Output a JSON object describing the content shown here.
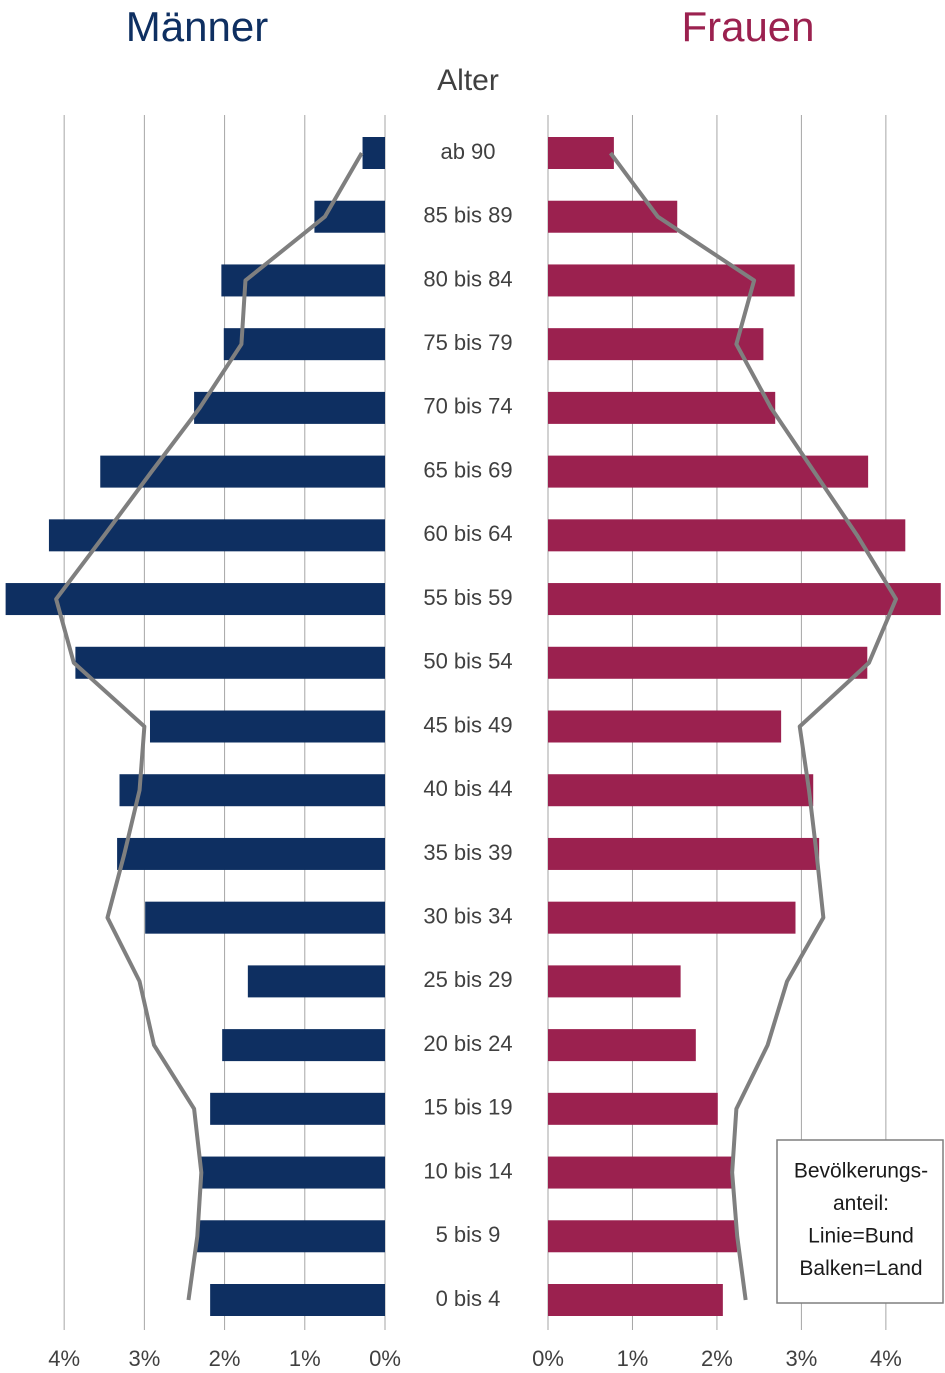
{
  "chart_data": {
    "type": "pyramid",
    "center_label": "Alter",
    "categories": [
      "ab 90",
      "85 bis 89",
      "80 bis 84",
      "75 bis 79",
      "70 bis 74",
      "65 bis 69",
      "60 bis 64",
      "55 bis 59",
      "50 bis 54",
      "45 bis 49",
      "40 bis 44",
      "35 bis 39",
      "30 bis 34",
      "25 bis 29",
      "20 bis 24",
      "15 bis 19",
      "10 bis 14",
      "5 bis 9",
      "0 bis 4"
    ],
    "line_color": "#7f7f7f",
    "grid": true,
    "panels": [
      {
        "title": "Männer",
        "side": "left",
        "color": "#0e2f61",
        "bars": [
          0.28,
          0.88,
          2.04,
          2.01,
          2.38,
          3.55,
          4.19,
          4.73,
          3.86,
          2.93,
          3.31,
          3.34,
          2.99,
          1.71,
          2.03,
          2.18,
          2.3,
          2.35,
          2.18
        ],
        "line": [
          0.29,
          0.75,
          1.74,
          1.79,
          2.31,
          2.91,
          3.5,
          4.1,
          3.88,
          3.0,
          3.06,
          3.25,
          3.46,
          3.06,
          2.88,
          2.38,
          2.29,
          2.34,
          2.45
        ],
        "xlim": [
          0,
          4.8
        ],
        "xticks": [
          {
            "value": 0,
            "label": "0%"
          },
          {
            "value": 1,
            "label": "1%"
          },
          {
            "value": 2,
            "label": "2%"
          },
          {
            "value": 3,
            "label": "3%"
          },
          {
            "value": 4,
            "label": "4%"
          }
        ]
      },
      {
        "title": "Frauen",
        "side": "right",
        "color": "#9b214f",
        "bars": [
          0.78,
          1.53,
          2.92,
          2.55,
          2.69,
          3.79,
          4.23,
          4.65,
          3.78,
          2.76,
          3.14,
          3.21,
          2.93,
          1.57,
          1.75,
          2.01,
          2.18,
          2.24,
          2.07
        ],
        "line": [
          0.74,
          1.3,
          2.44,
          2.23,
          2.64,
          3.15,
          3.66,
          4.12,
          3.8,
          2.98,
          3.09,
          3.18,
          3.26,
          2.83,
          2.6,
          2.23,
          2.18,
          2.24,
          2.34
        ],
        "xlim": [
          0,
          4.7
        ],
        "xticks": [
          {
            "value": 0,
            "label": "0%"
          },
          {
            "value": 1,
            "label": "1%"
          },
          {
            "value": 2,
            "label": "2%"
          },
          {
            "value": 3,
            "label": "3%"
          },
          {
            "value": 4,
            "label": "4%"
          }
        ]
      }
    ],
    "legend": {
      "position": "bottom-right",
      "lines": [
        "Bevölkerungs-",
        "anteil:",
        "Linie=Bund",
        "Balken=Land"
      ]
    }
  }
}
